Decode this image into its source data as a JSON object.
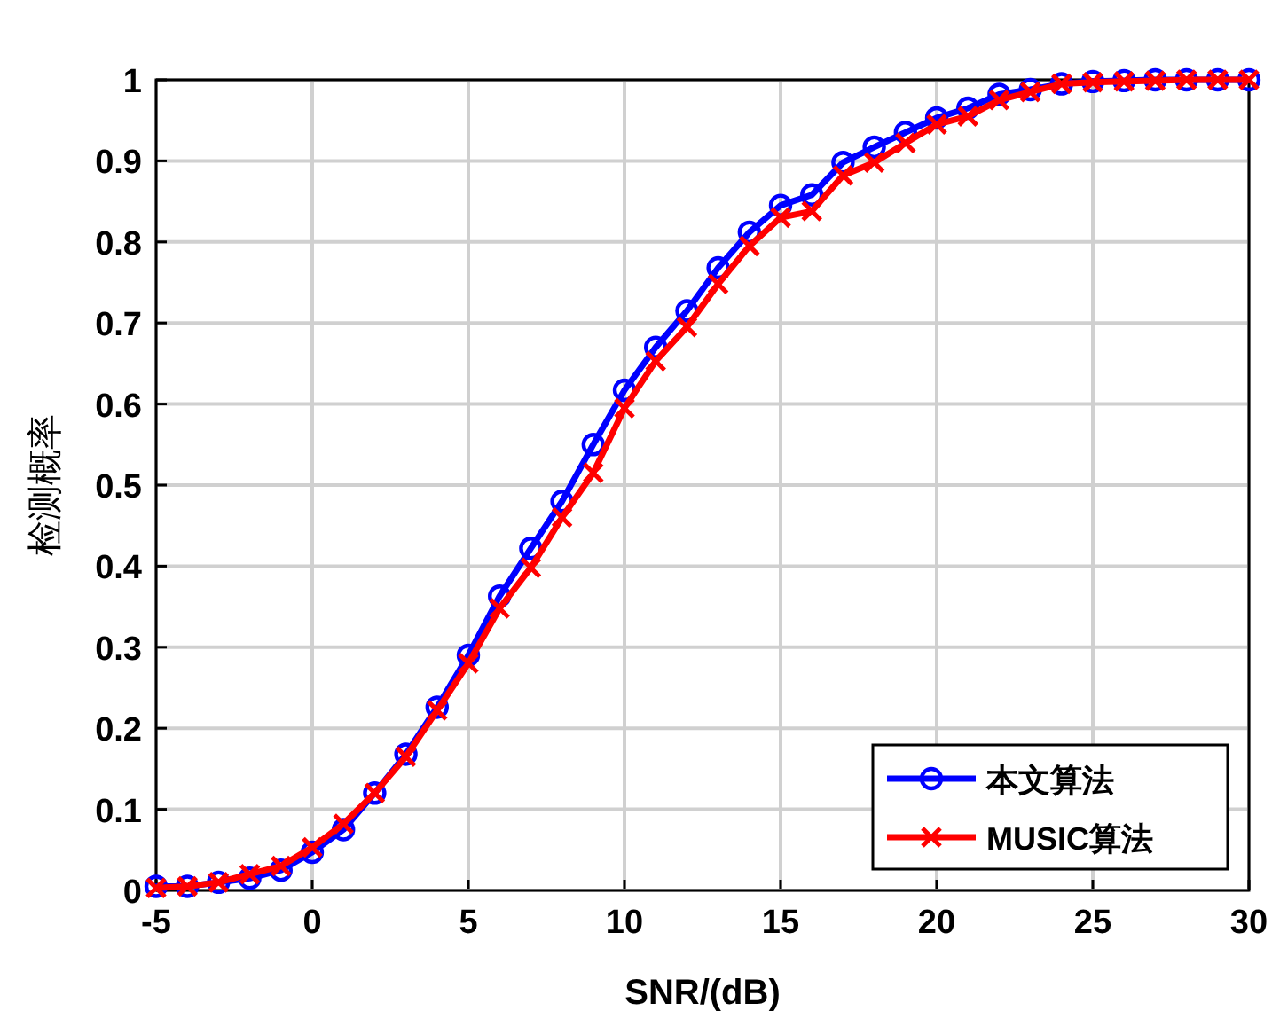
{
  "chart_data": {
    "type": "line",
    "xlabel": "SNR/(dB)",
    "ylabel": "检测概率",
    "x": [
      -5,
      -4,
      -3,
      -2,
      -1,
      0,
      1,
      2,
      3,
      4,
      5,
      6,
      7,
      8,
      9,
      10,
      11,
      12,
      13,
      14,
      15,
      16,
      17,
      18,
      19,
      20,
      21,
      22,
      23,
      24,
      25,
      26,
      27,
      28,
      29,
      30
    ],
    "series": [
      {
        "name": "本文算法",
        "color": "#0000ff",
        "marker": "circle",
        "values": [
          0.005,
          0.005,
          0.01,
          0.015,
          0.025,
          0.047,
          0.075,
          0.12,
          0.168,
          0.226,
          0.29,
          0.363,
          0.422,
          0.48,
          0.55,
          0.617,
          0.67,
          0.715,
          0.768,
          0.812,
          0.845,
          0.858,
          0.898,
          0.917,
          0.935,
          0.953,
          0.965,
          0.982,
          0.988,
          0.995,
          0.998,
          0.999,
          1,
          1,
          1,
          1
        ]
      },
      {
        "name": "MUSIC算法",
        "color": "#ff0000",
        "marker": "cross",
        "values": [
          0.003,
          0.005,
          0.01,
          0.02,
          0.03,
          0.053,
          0.082,
          0.12,
          0.165,
          0.222,
          0.28,
          0.348,
          0.398,
          0.46,
          0.515,
          0.595,
          0.653,
          0.695,
          0.748,
          0.795,
          0.83,
          0.838,
          0.882,
          0.898,
          0.922,
          0.945,
          0.955,
          0.975,
          0.985,
          0.995,
          0.997,
          0.998,
          0.999,
          1,
          1,
          1
        ]
      }
    ],
    "xlim": [
      -5,
      30
    ],
    "xticks": [
      -5,
      0,
      5,
      10,
      15,
      20,
      25,
      30
    ],
    "ylim": [
      0,
      1
    ],
    "yticks": [
      0,
      0.1,
      0.2,
      0.3,
      0.4,
      0.5,
      0.6,
      0.7,
      0.8,
      0.9,
      1
    ],
    "grid": true,
    "legend": "bottom right",
    "line_style": "solid"
  }
}
